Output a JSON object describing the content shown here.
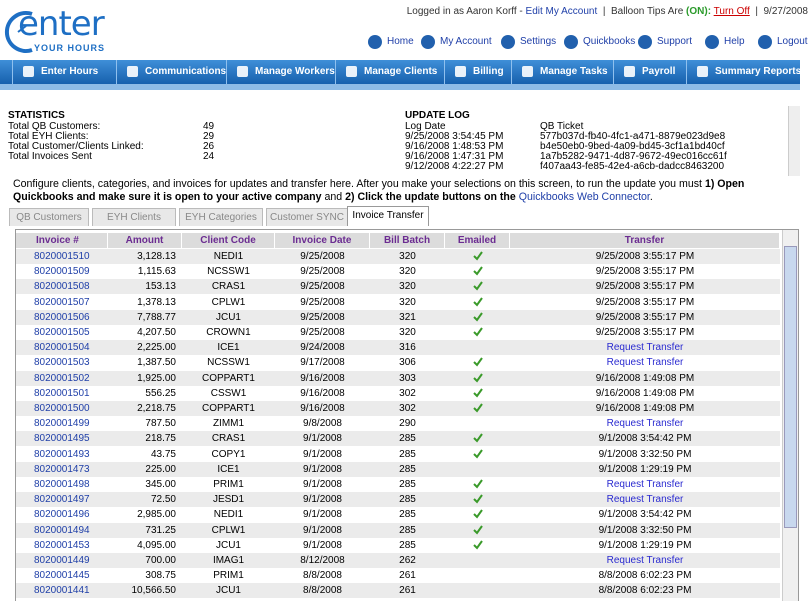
{
  "header": {
    "logo_main": "enter",
    "logo_sub": "YOUR HOURS",
    "user_text": "Logged in as Aaron Korff -",
    "edit_account": "Edit My Account",
    "separator": "|",
    "balloon_text": "Balloon Tips Are",
    "balloon_state": "(ON):",
    "turn_off": "Turn Off",
    "date": "9/27/2008"
  },
  "top_links": [
    "Home",
    "My Account",
    "Settings",
    "Quickbooks",
    "Support",
    "Help",
    "Logout"
  ],
  "nav": [
    "Enter Hours",
    "Communications",
    "Manage Workers",
    "Manage Clients",
    "Billing",
    "Manage Tasks",
    "Payroll",
    "Summary Reports"
  ],
  "statistics": {
    "title": "STATISTICS",
    "rows": [
      {
        "label": "Total QB Customers:",
        "value": 49
      },
      {
        "label": "Total EYH Clients:",
        "value": 29
      },
      {
        "label": "Total Customer/Clients Linked:",
        "value": 26
      },
      {
        "label": "Total Invoices Sent",
        "value": 24
      }
    ]
  },
  "update_log": {
    "title": "UPDATE LOG",
    "columns": [
      "Log Date",
      "QB Ticket"
    ],
    "rows": [
      [
        "9/25/2008 3:54:45 PM",
        "577b037d-fb40-4fc1-a471-8879e023d9e8"
      ],
      [
        "9/16/2008 1:48:53 PM",
        "b4e50eb0-9bed-4a09-bd45-3cf1a1bd40cf"
      ],
      [
        "9/16/2008 1:47:31 PM",
        "1a7b5282-9471-4d87-9672-49ec016cc61f"
      ],
      [
        "9/12/2008 4:22:27 PM",
        "f407aa43-fe85-42e4-a6cb-dadcc8463200"
      ]
    ]
  },
  "instructions": {
    "text1": "Configure clients, categories, and invoices for updates and transfer here. After you make your selections on this screen, to run the update you must",
    "bold1": "1) Open Quickbooks and make sure it is open to your active company",
    "text2": "and",
    "bold2": "2) Click the update buttons on the",
    "link": "Quickbooks Web Connector",
    "text3": "."
  },
  "tabs": [
    "QB Customers",
    "EYH Clients",
    "EYH Categories",
    "Customer SYNC",
    "Invoice Transfer"
  ],
  "active_tab": 4,
  "table": {
    "headers": [
      "Invoice #",
      "Amount",
      "Client Code",
      "Invoice Date",
      "Bill Batch",
      "Emailed",
      "Transfer"
    ],
    "rows": [
      [
        "8020001510",
        "3,128.13",
        "NEDI1",
        "9/25/2008",
        "320",
        true,
        "9/25/2008 3:55:17 PM"
      ],
      [
        "8020001509",
        "1,115.63",
        "NCSSW1",
        "9/25/2008",
        "320",
        true,
        "9/25/2008 3:55:17 PM"
      ],
      [
        "8020001508",
        "153.13",
        "CRAS1",
        "9/25/2008",
        "320",
        true,
        "9/25/2008 3:55:17 PM"
      ],
      [
        "8020001507",
        "1,378.13",
        "CPLW1",
        "9/25/2008",
        "320",
        true,
        "9/25/2008 3:55:17 PM"
      ],
      [
        "8020001506",
        "7,788.77",
        "JCU1",
        "9/25/2008",
        "321",
        true,
        "9/25/2008 3:55:17 PM"
      ],
      [
        "8020001505",
        "4,207.50",
        "CROWN1",
        "9/25/2008",
        "320",
        true,
        "9/25/2008 3:55:17 PM"
      ],
      [
        "8020001504",
        "2,225.00",
        "ICE1",
        "9/24/2008",
        "316",
        false,
        "Request Transfer"
      ],
      [
        "8020001503",
        "1,387.50",
        "NCSSW1",
        "9/17/2008",
        "306",
        true,
        "Request Transfer"
      ],
      [
        "8020001502",
        "1,925.00",
        "COPPART1",
        "9/16/2008",
        "303",
        true,
        "9/16/2008 1:49:08 PM"
      ],
      [
        "8020001501",
        "556.25",
        "CSSW1",
        "9/16/2008",
        "302",
        true,
        "9/16/2008 1:49:08 PM"
      ],
      [
        "8020001500",
        "2,218.75",
        "COPPART1",
        "9/16/2008",
        "302",
        true,
        "9/16/2008 1:49:08 PM"
      ],
      [
        "8020001499",
        "787.50",
        "ZIMM1",
        "9/8/2008",
        "290",
        false,
        "Request Transfer"
      ],
      [
        "8020001495",
        "218.75",
        "CRAS1",
        "9/1/2008",
        "285",
        true,
        "9/1/2008 3:54:42 PM"
      ],
      [
        "8020001493",
        "43.75",
        "COPY1",
        "9/1/2008",
        "285",
        true,
        "9/1/2008 3:32:50 PM"
      ],
      [
        "8020001473",
        "225.00",
        "ICE1",
        "9/1/2008",
        "285",
        false,
        "9/1/2008 1:29:19 PM"
      ],
      [
        "8020001498",
        "345.00",
        "PRIM1",
        "9/1/2008",
        "285",
        true,
        "Request Transfer"
      ],
      [
        "8020001497",
        "72.50",
        "JESD1",
        "9/1/2008",
        "285",
        true,
        "Request Transfer"
      ],
      [
        "8020001496",
        "2,985.00",
        "NEDI1",
        "9/1/2008",
        "285",
        true,
        "9/1/2008 3:54:42 PM"
      ],
      [
        "8020001494",
        "731.25",
        "CPLW1",
        "9/1/2008",
        "285",
        true,
        "9/1/2008 3:32:50 PM"
      ],
      [
        "8020001453",
        "4,095.00",
        "JCU1",
        "9/1/2008",
        "285",
        true,
        "9/1/2008 1:29:19 PM"
      ],
      [
        "8020001449",
        "700.00",
        "IMAG1",
        "8/12/2008",
        "262",
        false,
        "Request Transfer"
      ],
      [
        "8020001445",
        "308.75",
        "PRIM1",
        "8/8/2008",
        "261",
        false,
        "8/8/2008 6:02:23 PM"
      ],
      [
        "8020001441",
        "10,566.50",
        "JCU1",
        "8/8/2008",
        "261",
        false,
        "8/8/2008 6:02:23 PM"
      ]
    ]
  }
}
